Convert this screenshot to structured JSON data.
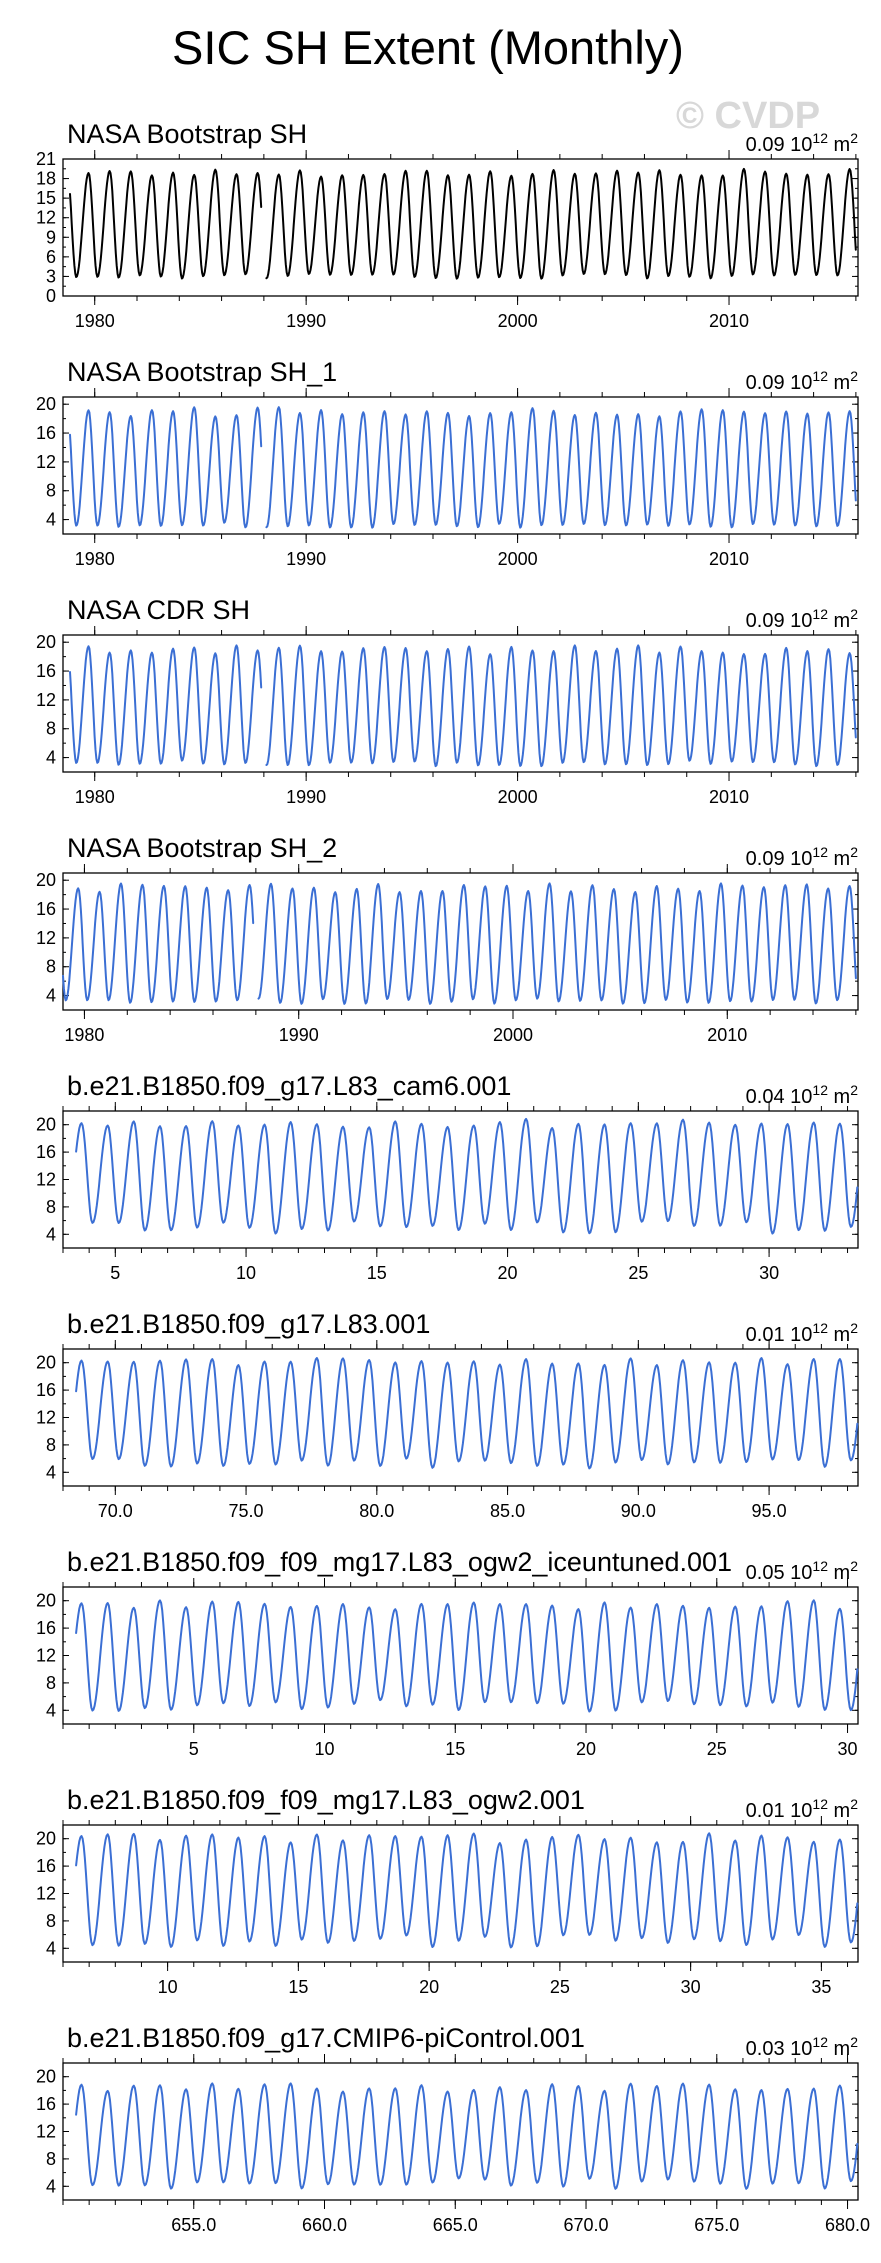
{
  "title": "SIC SH Extent (Monthly)",
  "watermark": "© CVDP",
  "colors": {
    "observed": "#000000",
    "model": "#3b6fd4"
  },
  "chart_data": [
    {
      "type": "line",
      "title": "NASA Bootstrap SH",
      "unit_label": "0.09 10",
      "unit_sup": "12",
      "unit_suffix": " m",
      "unit_sup2": "2",
      "color": "observed",
      "x_start": 1978.83,
      "x_end": 2016.0,
      "xlim": [
        1978.5,
        2016.1
      ],
      "ylim": [
        0,
        21
      ],
      "yticks": [
        "0",
        "3",
        "6",
        "9",
        "12",
        "15",
        "18",
        "21"
      ],
      "ytick_values": [
        0,
        3,
        6,
        9,
        12,
        15,
        18,
        21
      ],
      "xticks": [
        "1980",
        "1990",
        "2000",
        "2010"
      ],
      "xtick_values": [
        1980,
        1990,
        2000,
        2010
      ],
      "max_range": [
        18.3,
        19.5
      ],
      "min_range": [
        2.6,
        3.6
      ],
      "gap": [
        1987.9,
        1988.1
      ]
    },
    {
      "type": "line",
      "title": "NASA Bootstrap SH_1",
      "unit_label": "0.09 10",
      "unit_sup": "12",
      "unit_suffix": " m",
      "unit_sup2": "2",
      "color": "model",
      "x_start": 1978.83,
      "x_end": 2016.0,
      "xlim": [
        1978.5,
        2016.1
      ],
      "ylim": [
        2,
        21
      ],
      "yticks": [
        "4",
        "8",
        "12",
        "16",
        "20"
      ],
      "ytick_values": [
        4,
        8,
        12,
        16,
        20
      ],
      "xticks": [
        "1980",
        "1990",
        "2000",
        "2010"
      ],
      "xtick_values": [
        1980,
        1990,
        2000,
        2010
      ],
      "max_range": [
        18.3,
        19.6
      ],
      "min_range": [
        2.8,
        3.6
      ],
      "gap": [
        1987.9,
        1988.1
      ]
    },
    {
      "type": "line",
      "title": "NASA CDR SH",
      "unit_label": "0.09 10",
      "unit_sup": "12",
      "unit_suffix": " m",
      "unit_sup2": "2",
      "color": "model",
      "x_start": 1978.83,
      "x_end": 2016.0,
      "xlim": [
        1978.5,
        2016.1
      ],
      "ylim": [
        2,
        21
      ],
      "yticks": [
        "4",
        "8",
        "12",
        "16",
        "20"
      ],
      "ytick_values": [
        4,
        8,
        12,
        16,
        20
      ],
      "xticks": [
        "1980",
        "1990",
        "2000",
        "2010"
      ],
      "xtick_values": [
        1980,
        1990,
        2000,
        2010
      ],
      "max_range": [
        18.3,
        19.6
      ],
      "min_range": [
        2.8,
        3.6
      ],
      "gap": [
        1987.9,
        1988.1
      ]
    },
    {
      "type": "line",
      "title": "NASA Bootstrap SH_2",
      "unit_label": "0.09 10",
      "unit_sup": "12",
      "unit_suffix": " m",
      "unit_sup2": "2",
      "color": "model",
      "x_start": 1979.0,
      "x_end": 2016.0,
      "xlim": [
        1979.0,
        2016.1
      ],
      "ylim": [
        2,
        21
      ],
      "yticks": [
        "4",
        "8",
        "12",
        "16",
        "20"
      ],
      "ytick_values": [
        4,
        8,
        12,
        16,
        20
      ],
      "xticks": [
        "1980",
        "1990",
        "2000",
        "2010"
      ],
      "xtick_values": [
        1980,
        1990,
        2000,
        2010
      ],
      "max_range": [
        18.3,
        19.6
      ],
      "min_range": [
        2.8,
        3.6
      ],
      "gap": [
        1987.9,
        1988.1
      ]
    },
    {
      "type": "line",
      "title": "b.e21.B1850.f09_g17.L83_cam6.001",
      "unit_label": "0.04 10",
      "unit_sup": "12",
      "unit_suffix": " m",
      "unit_sup2": "2",
      "color": "model",
      "x_start": 3.5,
      "x_end": 33.4,
      "xlim": [
        3.0,
        33.4
      ],
      "ylim": [
        2,
        22
      ],
      "yticks": [
        "4",
        "8",
        "12",
        "16",
        "20"
      ],
      "ytick_values": [
        4,
        8,
        12,
        16,
        20
      ],
      "xticks": [
        "5",
        "10",
        "15",
        "20",
        "25",
        "30"
      ],
      "xtick_values": [
        5,
        10,
        15,
        20,
        25,
        30
      ],
      "max_range": [
        19.5,
        20.9
      ],
      "min_range": [
        4.0,
        6.0
      ],
      "gap": null
    },
    {
      "type": "line",
      "title": "b.e21.B1850.f09_g17.L83.001",
      "unit_label": "0.01 10",
      "unit_sup": "12",
      "unit_suffix": " m",
      "unit_sup2": "2",
      "color": "model",
      "x_start": 68.5,
      "x_end": 98.4,
      "xlim": [
        68.0,
        98.4
      ],
      "ylim": [
        2,
        22
      ],
      "yticks": [
        "4",
        "8",
        "12",
        "16",
        "20"
      ],
      "ytick_values": [
        4,
        8,
        12,
        16,
        20
      ],
      "xticks": [
        "70.0",
        "75.0",
        "80.0",
        "85.0",
        "90.0",
        "95.0"
      ],
      "xtick_values": [
        70,
        75,
        80,
        85,
        90,
        95
      ],
      "max_range": [
        19.6,
        20.8
      ],
      "min_range": [
        4.5,
        6.0
      ],
      "gap": null
    },
    {
      "type": "line",
      "title": "b.e21.B1850.f09_f09_mg17.L83_ogw2_iceuntuned.001",
      "unit_label": "0.05 10",
      "unit_sup": "12",
      "unit_suffix": " m",
      "unit_sup2": "2",
      "color": "model",
      "x_start": 0.5,
      "x_end": 30.4,
      "xlim": [
        0.0,
        30.4
      ],
      "ylim": [
        2,
        22
      ],
      "yticks": [
        "4",
        "8",
        "12",
        "16",
        "20"
      ],
      "ytick_values": [
        4,
        8,
        12,
        16,
        20
      ],
      "xticks": [
        "5",
        "10",
        "15",
        "20",
        "25",
        "30"
      ],
      "xtick_values": [
        5,
        10,
        15,
        20,
        25,
        30
      ],
      "max_range": [
        18.7,
        20.1
      ],
      "min_range": [
        3.8,
        5.5
      ],
      "gap": null
    },
    {
      "type": "line",
      "title": "b.e21.B1850.f09_f09_mg17.L83_ogw2.001",
      "unit_label": "0.01 10",
      "unit_sup": "12",
      "unit_suffix": " m",
      "unit_sup2": "2",
      "color": "model",
      "x_start": 6.5,
      "x_end": 36.4,
      "xlim": [
        6.0,
        36.4
      ],
      "ylim": [
        2,
        22
      ],
      "yticks": [
        "4",
        "8",
        "12",
        "16",
        "20"
      ],
      "ytick_values": [
        4,
        8,
        12,
        16,
        20
      ],
      "xticks": [
        "10",
        "15",
        "20",
        "25",
        "30",
        "35"
      ],
      "xtick_values": [
        10,
        15,
        20,
        25,
        30,
        35
      ],
      "max_range": [
        19.3,
        20.8
      ],
      "min_range": [
        4.0,
        6.0
      ],
      "gap": null
    },
    {
      "type": "line",
      "title": "b.e21.B1850.f09_g17.CMIP6-piControl.001",
      "unit_label": "0.03 10",
      "unit_sup": "12",
      "unit_suffix": " m",
      "unit_sup2": "2",
      "color": "model",
      "x_start": 650.5,
      "x_end": 680.4,
      "xlim": [
        650.0,
        680.4
      ],
      "ylim": [
        2,
        22
      ],
      "yticks": [
        "4",
        "8",
        "12",
        "16",
        "20"
      ],
      "ytick_values": [
        4,
        8,
        12,
        16,
        20
      ],
      "xticks": [
        "655.0",
        "660.0",
        "665.0",
        "670.0",
        "675.0",
        "680.0"
      ],
      "xtick_values": [
        655,
        660,
        665,
        670,
        675,
        680
      ],
      "max_range": [
        17.8,
        19.1
      ],
      "min_range": [
        3.6,
        5.2
      ],
      "gap": null
    }
  ]
}
